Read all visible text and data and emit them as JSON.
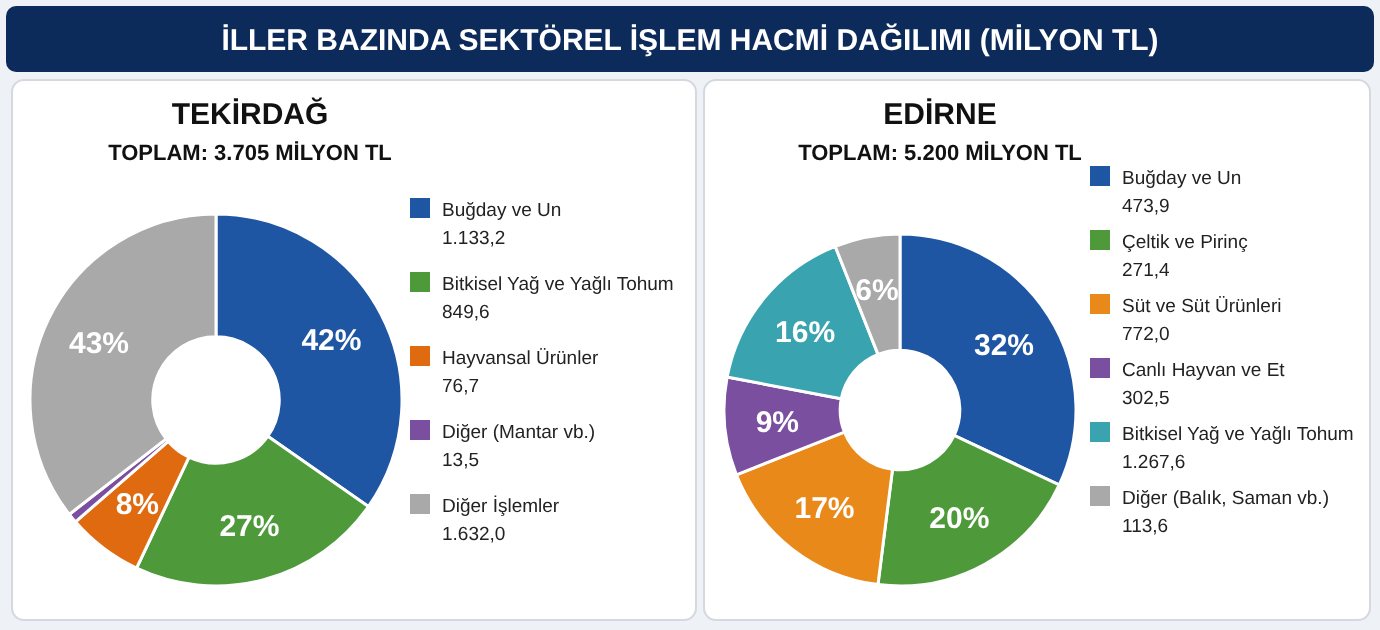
{
  "chart_data": [
    {
      "type": "donut",
      "title": "TEKİRDAĞ",
      "subtitle": "TOPLAM: 3.705 MİLYON TL",
      "annotations": [
        "İLLER BAZINDA SEKTÖREL İŞLEM HACMİ DAĞILIMI (MİLYON TL)"
      ],
      "categories": [
        "Buğday ve Un\n1.133,2",
        "Bitkisel Yağ ve Yağlı Tohum\n849,6",
        "Hayvansal Ürünler\n76,7",
        "Diğer (Mantar vb.)\n13,5",
        "Diğer İşlemler\n1.632,0"
      ],
      "values": [
        42,
        27,
        8,
        1,
        43
      ],
      "colors": [
        "#1f56a3",
        "#4e9a3a",
        "#e06a10",
        "#7b4fa0",
        "#a9a9a9"
      ],
      "value_labels": [
        "42%",
        "27%",
        "8%",
        null,
        "43%"
      ],
      "legend": "right"
    },
    {
      "type": "donut",
      "title": "EDİRNE",
      "subtitle": "TOPLAM: 5.200 MİLYON TL",
      "categories": [
        "Buğday ve Un\n473,9",
        "Çeltik ve Pirinç\n271,4",
        "Süt ve Süt Ürünleri\n772,0",
        "Canlı Hayvan ve Et\n302,5",
        "Bitkisel Yağ ve Yağlı Tohum\n1.267,6",
        "Diğer (Balık, Saman vb.)\n113,6"
      ],
      "values": [
        32,
        20,
        17,
        9,
        16,
        6
      ],
      "colors": [
        "#1f56a3",
        "#4e9a3a",
        "#e8891a",
        "#7b4fa0",
        "#3aa3b0",
        "#a9a9a9"
      ],
      "value_labels": [
        "32%",
        "20%",
        "17%",
        "9%",
        "16%",
        "6%"
      ],
      "legend": "right"
    }
  ]
}
